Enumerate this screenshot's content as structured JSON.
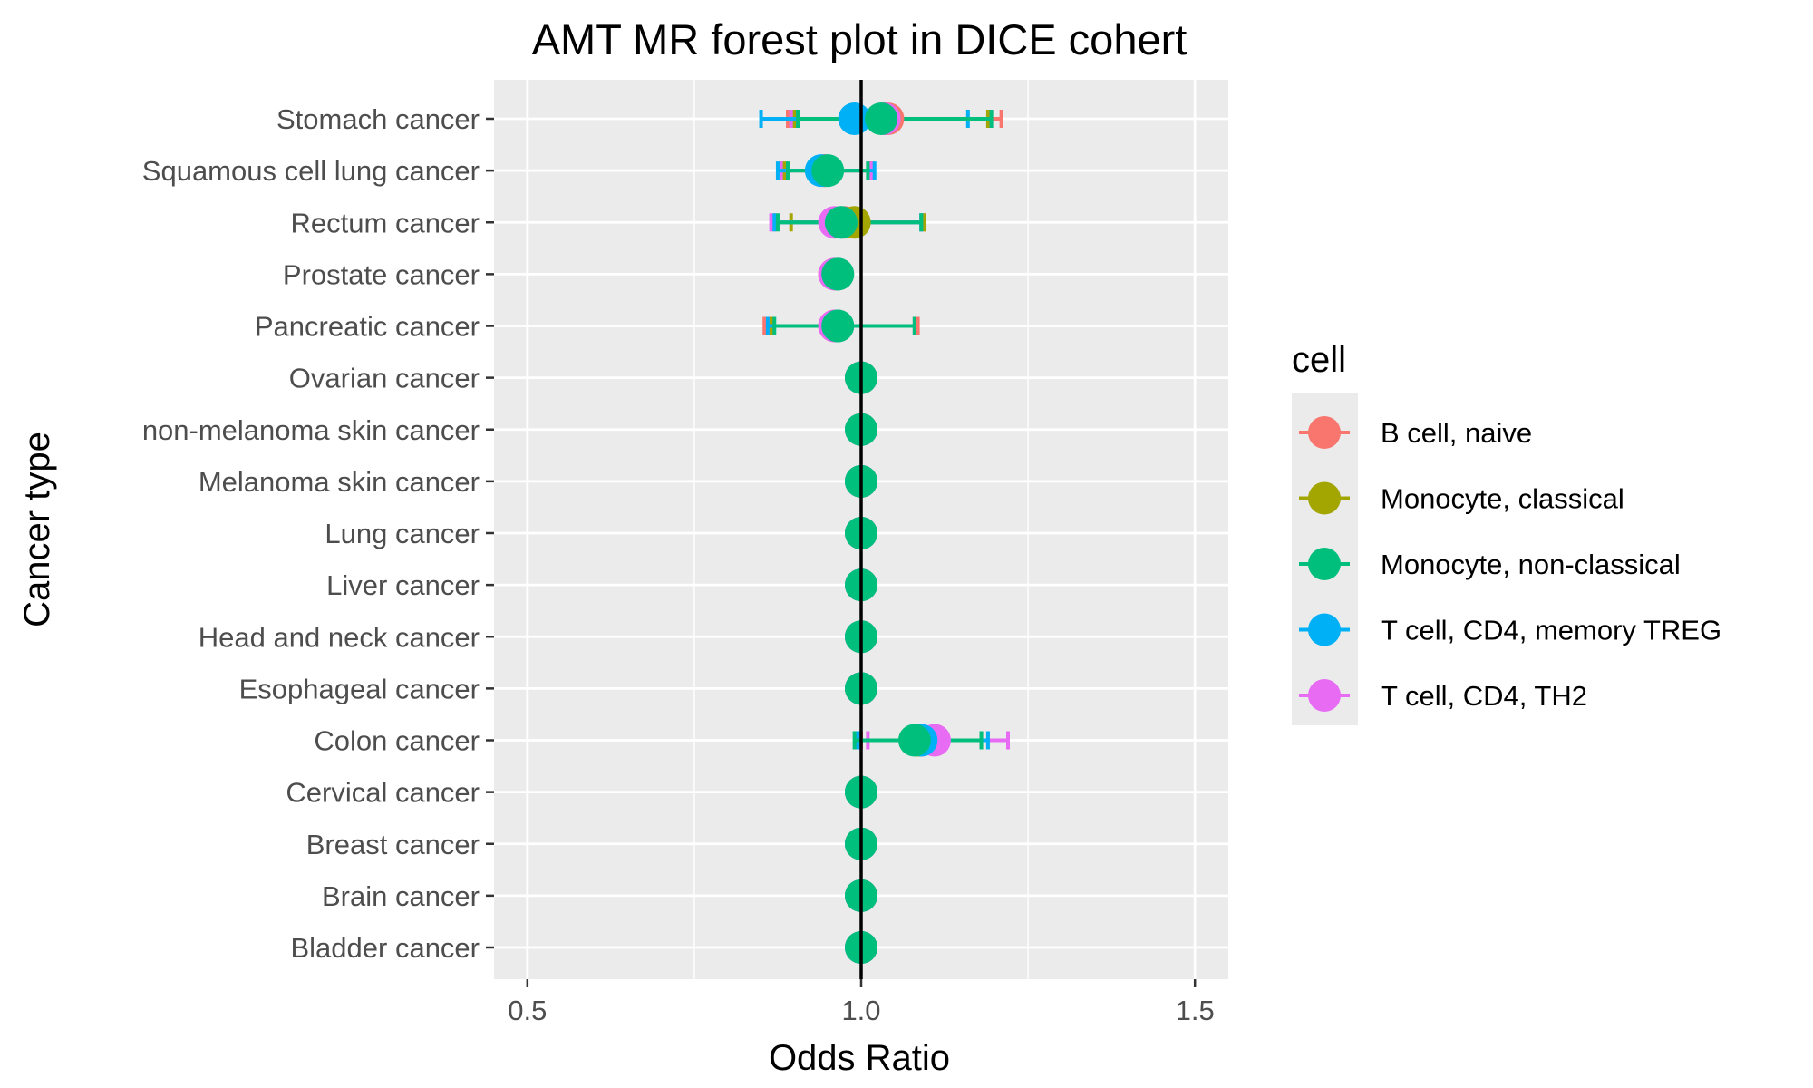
{
  "chart_data": {
    "type": "forest",
    "title": "AMT MR forest plot in DICE cohert",
    "xlabel": "Odds Ratio",
    "ylabel": "Cancer type",
    "xlim": [
      0.45,
      1.55
    ],
    "xticks": [
      0.5,
      1.0,
      1.5
    ],
    "xtick_labels": [
      "0.5",
      "1.0",
      "1.5"
    ],
    "reference_line": 1.0,
    "grid": true,
    "legend": {
      "title": "cell",
      "placement": "right",
      "entries": [
        {
          "name": "B cell, naive",
          "color": "#F8766D"
        },
        {
          "name": "Monocyte, classical",
          "color": "#A3A500"
        },
        {
          "name": "Monocyte, non-classical",
          "color": "#00BF7D"
        },
        {
          "name": "T cell, CD4, memory TREG",
          "color": "#00B0F6"
        },
        {
          "name": "T cell, CD4, TH2",
          "color": "#E76BF3"
        }
      ]
    },
    "categories": [
      "Stomach cancer",
      "Squamous cell lung cancer",
      "Rectum cancer",
      "Prostate cancer",
      "Pancreatic cancer",
      "Ovarian cancer",
      "non-melanoma skin cancer",
      "Melanoma skin cancer",
      "Lung cancer",
      "Liver cancer",
      "Head and neck cancer",
      "Esophageal cancer",
      "Colon cancer",
      "Cervical cancer",
      "Breast cancer",
      "Brain cancer",
      "Bladder cancer"
    ],
    "series": [
      {
        "name": "B cell, naive",
        "color": "#F8766D",
        "points": [
          {
            "category": "Stomach cancer",
            "or": 1.04,
            "lo": 0.89,
            "hi": 1.21
          },
          {
            "category": "Squamous cell lung cancer",
            "or": 0.945,
            "lo": 0.88,
            "hi": 1.015
          },
          {
            "category": "Rectum cancer",
            "or": 0.975,
            "lo": 0.87,
            "hi": 1.095
          },
          {
            "category": "Prostate cancer",
            "or": 0.96,
            "lo": 0.955,
            "hi": 0.975
          },
          {
            "category": "Pancreatic cancer",
            "or": 0.96,
            "lo": 0.855,
            "hi": 1.085
          },
          {
            "category": "Ovarian cancer",
            "or": 1.0,
            "lo": 1.0,
            "hi": 1.0
          },
          {
            "category": "non-melanoma skin cancer",
            "or": 1.0,
            "lo": 1.0,
            "hi": 1.0
          },
          {
            "category": "Melanoma skin cancer",
            "or": 1.0,
            "lo": 1.0,
            "hi": 1.0
          },
          {
            "category": "Lung cancer",
            "or": 1.0,
            "lo": 1.0,
            "hi": 1.0
          },
          {
            "category": "Liver cancer",
            "or": 1.0,
            "lo": 1.0,
            "hi": 1.0
          },
          {
            "category": "Head and neck cancer",
            "or": 1.0,
            "lo": 1.0,
            "hi": 1.0
          },
          {
            "category": "Esophageal cancer",
            "or": 1.0,
            "lo": 1.0,
            "hi": 1.0
          },
          {
            "category": "Colon cancer",
            "or": 1.09,
            "lo": 1.0,
            "hi": 1.19
          },
          {
            "category": "Cervical cancer",
            "or": 1.0,
            "lo": 1.0,
            "hi": 1.0
          },
          {
            "category": "Breast cancer",
            "or": 1.0,
            "lo": 1.0,
            "hi": 1.0
          },
          {
            "category": "Brain cancer",
            "or": 1.0,
            "lo": 1.0,
            "hi": 1.0
          },
          {
            "category": "Bladder cancer",
            "or": 1.0,
            "lo": 1.0,
            "hi": 1.0
          }
        ]
      },
      {
        "name": "Monocyte, classical",
        "color": "#A3A500",
        "points": [
          {
            "category": "Stomach cancer",
            "or": 1.035,
            "lo": 0.9,
            "hi": 1.19
          },
          {
            "category": "Squamous cell lung cancer",
            "or": 0.945,
            "lo": 0.885,
            "hi": 1.015
          },
          {
            "category": "Rectum cancer",
            "or": 0.99,
            "lo": 0.895,
            "hi": 1.095
          },
          {
            "category": "Prostate cancer",
            "or": 0.965,
            "lo": 0.955,
            "hi": 0.975
          },
          {
            "category": "Pancreatic cancer",
            "or": 0.965,
            "lo": 0.865,
            "hi": 1.08
          },
          {
            "category": "Ovarian cancer",
            "or": 1.0,
            "lo": 1.0,
            "hi": 1.0
          },
          {
            "category": "non-melanoma skin cancer",
            "or": 1.0,
            "lo": 1.0,
            "hi": 1.0
          },
          {
            "category": "Melanoma skin cancer",
            "or": 1.0,
            "lo": 1.0,
            "hi": 1.0
          },
          {
            "category": "Lung cancer",
            "or": 1.0,
            "lo": 1.0,
            "hi": 1.0
          },
          {
            "category": "Liver cancer",
            "or": 1.0,
            "lo": 1.0,
            "hi": 1.0
          },
          {
            "category": "Head and neck cancer",
            "or": 1.0,
            "lo": 1.0,
            "hi": 1.0
          },
          {
            "category": "Esophageal cancer",
            "or": 1.0,
            "lo": 1.0,
            "hi": 1.0
          },
          {
            "category": "Colon cancer",
            "or": 1.085,
            "lo": 0.995,
            "hi": 1.18
          },
          {
            "category": "Cervical cancer",
            "or": 1.0,
            "lo": 1.0,
            "hi": 1.0
          },
          {
            "category": "Breast cancer",
            "or": 1.0,
            "lo": 1.0,
            "hi": 1.0
          },
          {
            "category": "Brain cancer",
            "or": 1.0,
            "lo": 1.0,
            "hi": 1.0
          },
          {
            "category": "Bladder cancer",
            "or": 1.0,
            "lo": 1.0,
            "hi": 1.0
          }
        ]
      },
      {
        "name": "Monocyte, non-classical",
        "color": "#00BF7D",
        "points": [
          {
            "category": "Stomach cancer",
            "or": 1.03,
            "lo": 0.905,
            "hi": 1.195
          },
          {
            "category": "Squamous cell lung cancer",
            "or": 0.95,
            "lo": 0.89,
            "hi": 1.01
          },
          {
            "category": "Rectum cancer",
            "or": 0.97,
            "lo": 0.875,
            "hi": 1.09
          },
          {
            "category": "Prostate cancer",
            "or": 0.965,
            "lo": 0.955,
            "hi": 0.975
          },
          {
            "category": "Pancreatic cancer",
            "or": 0.965,
            "lo": 0.87,
            "hi": 1.08
          },
          {
            "category": "Ovarian cancer",
            "or": 1.0,
            "lo": 1.0,
            "hi": 1.0
          },
          {
            "category": "non-melanoma skin cancer",
            "or": 1.0,
            "lo": 1.0,
            "hi": 1.0
          },
          {
            "category": "Melanoma skin cancer",
            "or": 1.0,
            "lo": 1.0,
            "hi": 1.0
          },
          {
            "category": "Lung cancer",
            "or": 1.0,
            "lo": 1.0,
            "hi": 1.0
          },
          {
            "category": "Liver cancer",
            "or": 1.0,
            "lo": 1.0,
            "hi": 1.0
          },
          {
            "category": "Head and neck cancer",
            "or": 1.0,
            "lo": 1.0,
            "hi": 1.0
          },
          {
            "category": "Esophageal cancer",
            "or": 1.0,
            "lo": 1.0,
            "hi": 1.0
          },
          {
            "category": "Colon cancer",
            "or": 1.08,
            "lo": 0.99,
            "hi": 1.18
          },
          {
            "category": "Cervical cancer",
            "or": 1.0,
            "lo": 1.0,
            "hi": 1.0
          },
          {
            "category": "Breast cancer",
            "or": 1.0,
            "lo": 1.0,
            "hi": 1.0
          },
          {
            "category": "Brain cancer",
            "or": 1.0,
            "lo": 1.0,
            "hi": 1.0
          },
          {
            "category": "Bladder cancer",
            "or": 1.0,
            "lo": 1.0,
            "hi": 1.0
          }
        ]
      },
      {
        "name": "T cell, CD4, memory TREG",
        "color": "#00B0F6",
        "points": [
          {
            "category": "Stomach cancer",
            "or": 0.99,
            "lo": 0.85,
            "hi": 1.16
          },
          {
            "category": "Squamous cell lung cancer",
            "or": 0.94,
            "lo": 0.875,
            "hi": 1.02
          },
          {
            "category": "Rectum cancer",
            "or": 0.97,
            "lo": 0.87,
            "hi": 1.09
          },
          {
            "category": "Prostate cancer",
            "or": 0.965,
            "lo": 0.955,
            "hi": 0.975
          },
          {
            "category": "Pancreatic cancer",
            "or": 0.965,
            "lo": 0.86,
            "hi": 1.08
          },
          {
            "category": "Ovarian cancer",
            "or": 1.0,
            "lo": 1.0,
            "hi": 1.0
          },
          {
            "category": "non-melanoma skin cancer",
            "or": 1.0,
            "lo": 1.0,
            "hi": 1.0
          },
          {
            "category": "Melanoma skin cancer",
            "or": 1.0,
            "lo": 1.0,
            "hi": 1.0
          },
          {
            "category": "Lung cancer",
            "or": 1.0,
            "lo": 1.0,
            "hi": 1.0
          },
          {
            "category": "Liver cancer",
            "or": 1.0,
            "lo": 1.0,
            "hi": 1.0
          },
          {
            "category": "Head and neck cancer",
            "or": 1.0,
            "lo": 1.0,
            "hi": 1.0
          },
          {
            "category": "Esophageal cancer",
            "or": 1.0,
            "lo": 1.0,
            "hi": 1.0
          },
          {
            "category": "Colon cancer",
            "or": 1.09,
            "lo": 0.995,
            "hi": 1.19
          },
          {
            "category": "Cervical cancer",
            "or": 1.0,
            "lo": 1.0,
            "hi": 1.0
          },
          {
            "category": "Breast cancer",
            "or": 1.0,
            "lo": 1.0,
            "hi": 1.0
          },
          {
            "category": "Brain cancer",
            "or": 1.0,
            "lo": 1.0,
            "hi": 1.0
          },
          {
            "category": "Bladder cancer",
            "or": 1.0,
            "lo": 1.0,
            "hi": 1.0
          }
        ]
      },
      {
        "name": "T cell, CD4, TH2",
        "color": "#E76BF3",
        "points": [
          {
            "category": "Stomach cancer",
            "or": 1.035,
            "lo": 0.895,
            "hi": 1.195
          },
          {
            "category": "Squamous cell lung cancer",
            "or": 0.945,
            "lo": 0.88,
            "hi": 1.015
          },
          {
            "category": "Rectum cancer",
            "or": 0.96,
            "lo": 0.865,
            "hi": 1.09
          },
          {
            "category": "Prostate cancer",
            "or": 0.96,
            "lo": 0.95,
            "hi": 0.97
          },
          {
            "category": "Pancreatic cancer",
            "or": 0.96,
            "lo": 0.86,
            "hi": 1.08
          },
          {
            "category": "Ovarian cancer",
            "or": 1.0,
            "lo": 1.0,
            "hi": 1.0
          },
          {
            "category": "non-melanoma skin cancer",
            "or": 1.0,
            "lo": 1.0,
            "hi": 1.0
          },
          {
            "category": "Melanoma skin cancer",
            "or": 1.0,
            "lo": 1.0,
            "hi": 1.0
          },
          {
            "category": "Lung cancer",
            "or": 1.0,
            "lo": 1.0,
            "hi": 1.0
          },
          {
            "category": "Liver cancer",
            "or": 1.0,
            "lo": 1.0,
            "hi": 1.0
          },
          {
            "category": "Head and neck cancer",
            "or": 1.0,
            "lo": 1.0,
            "hi": 1.0
          },
          {
            "category": "Esophageal cancer",
            "or": 1.0,
            "lo": 1.0,
            "hi": 1.0
          },
          {
            "category": "Colon cancer",
            "or": 1.11,
            "lo": 1.01,
            "hi": 1.22
          },
          {
            "category": "Cervical cancer",
            "or": 1.0,
            "lo": 1.0,
            "hi": 1.0
          },
          {
            "category": "Breast cancer",
            "or": 1.0,
            "lo": 1.0,
            "hi": 1.0
          },
          {
            "category": "Brain cancer",
            "or": 1.0,
            "lo": 1.0,
            "hi": 1.0
          },
          {
            "category": "Bladder cancer",
            "or": 1.0,
            "lo": 1.0,
            "hi": 1.0
          }
        ]
      }
    ],
    "draw_order": [
      "B cell, naive",
      "Monocyte, classical",
      "T cell, CD4, TH2",
      "T cell, CD4, memory TREG",
      "Monocyte, non-classical"
    ]
  }
}
